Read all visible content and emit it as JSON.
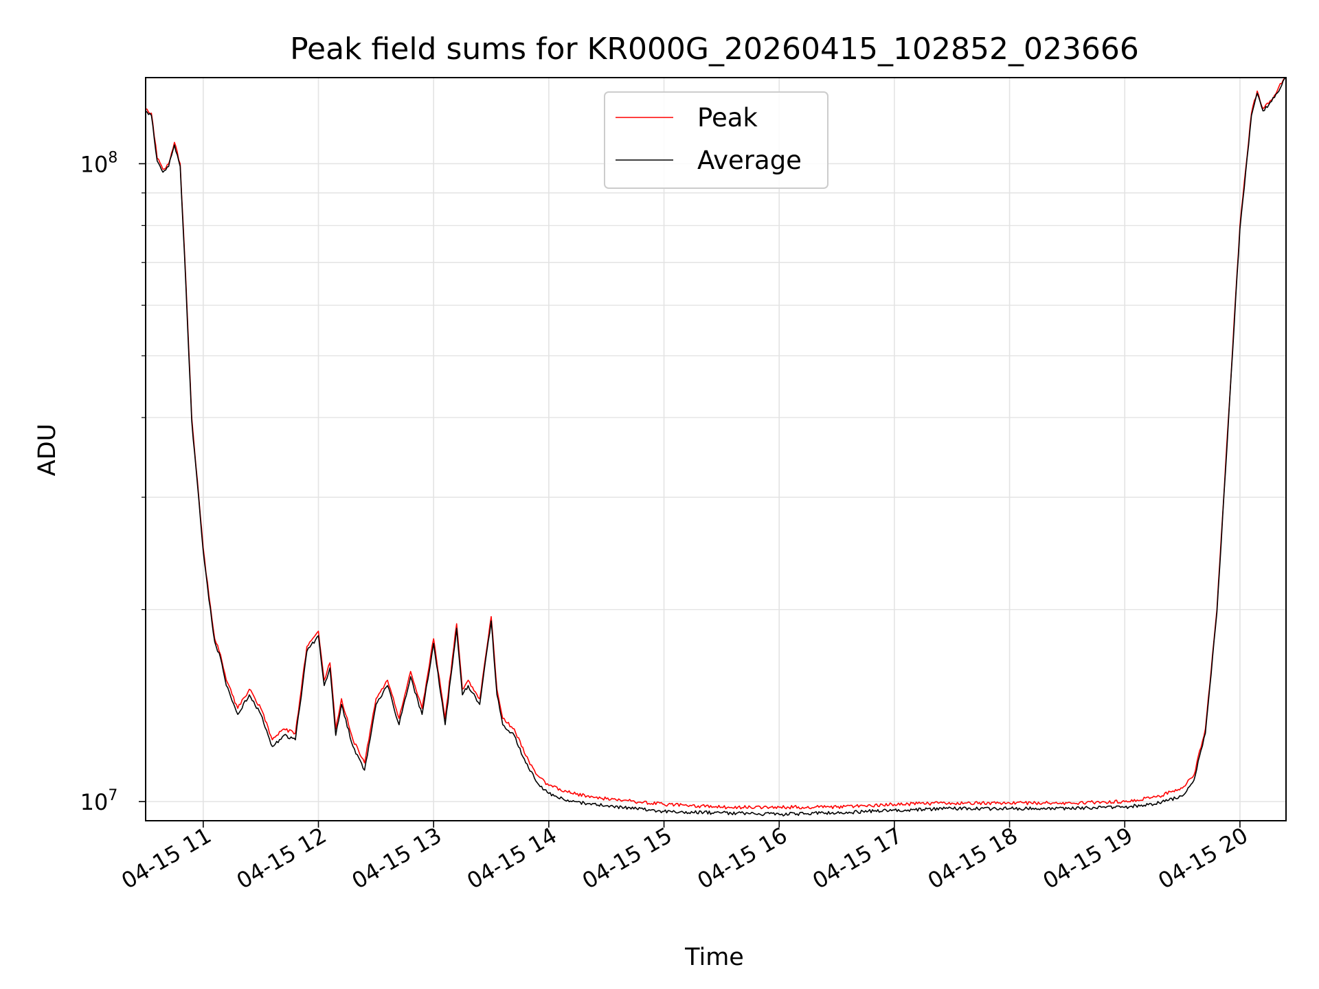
{
  "chart_data": {
    "type": "line",
    "title": "Peak field sums for KR000G_20260415_102852_023666",
    "xlabel": "Time",
    "ylabel": "ADU",
    "xlim": [
      10.5,
      20.4
    ],
    "ylim_log10": [
      6.97,
      8.135
    ],
    "y_scale": "log",
    "x_ticks": [
      {
        "value": 11,
        "label": "04-15 11"
      },
      {
        "value": 12,
        "label": "04-15 12"
      },
      {
        "value": 13,
        "label": "04-15 13"
      },
      {
        "value": 14,
        "label": "04-15 14"
      },
      {
        "value": 15,
        "label": "04-15 15"
      },
      {
        "value": 16,
        "label": "04-15 16"
      },
      {
        "value": 17,
        "label": "04-15 17"
      },
      {
        "value": 18,
        "label": "04-15 18"
      },
      {
        "value": 19,
        "label": "04-15 19"
      },
      {
        "value": 20,
        "label": "04-15 20"
      }
    ],
    "y_major_ticks": [
      {
        "exp": 7,
        "base": "10",
        "sup": "7"
      },
      {
        "exp": 8,
        "base": "10",
        "sup": "8"
      }
    ],
    "y_minor_ticks": [
      20000000,
      30000000,
      40000000,
      50000000,
      60000000,
      70000000,
      80000000,
      90000000,
      200000000
    ],
    "grid": true,
    "legend": "top-center",
    "series": [
      {
        "name": "Peak",
        "color": "#ff0000",
        "x": [
          10.5,
          10.55,
          10.6,
          10.65,
          10.7,
          10.75,
          10.8,
          10.85,
          10.9,
          11.0,
          11.05,
          11.1,
          11.15,
          11.2,
          11.3,
          11.4,
          11.5,
          11.6,
          11.7,
          11.8,
          11.9,
          12.0,
          12.05,
          12.1,
          12.15,
          12.2,
          12.3,
          12.4,
          12.5,
          12.6,
          12.7,
          12.8,
          12.9,
          13.0,
          13.1,
          13.2,
          13.25,
          13.3,
          13.4,
          13.5,
          13.55,
          13.6,
          13.7,
          13.8,
          13.9,
          14.0,
          14.2,
          14.5,
          15.0,
          15.5,
          16.0,
          16.5,
          17.0,
          17.5,
          18.0,
          18.5,
          19.0,
          19.3,
          19.5,
          19.6,
          19.7,
          19.8,
          19.9,
          20.0,
          20.1,
          20.15,
          20.2,
          20.3,
          20.4
        ],
        "y": [
          122000000,
          120000000,
          102000000,
          98000000,
          100000000,
          108000000,
          100000000,
          65000000,
          40000000,
          25000000,
          21000000,
          18000000,
          17000000,
          15500000,
          14000000,
          15000000,
          14000000,
          12500000,
          13000000,
          12800000,
          17500000,
          18500000,
          15500000,
          16500000,
          13000000,
          14500000,
          12500000,
          11500000,
          14500000,
          15500000,
          13500000,
          16000000,
          14000000,
          18000000,
          13500000,
          19000000,
          15000000,
          15500000,
          14500000,
          19500000,
          15000000,
          13500000,
          13000000,
          11800000,
          11000000,
          10600000,
          10300000,
          10100000,
          9900000,
          9800000,
          9800000,
          9800000,
          9900000,
          9950000,
          9950000,
          9950000,
          10000000,
          10200000,
          10500000,
          11000000,
          13000000,
          20000000,
          40000000,
          80000000,
          120000000,
          130000000,
          122000000,
          128000000,
          138000000
        ]
      },
      {
        "name": "Average",
        "color": "#000000",
        "x": [
          10.5,
          10.55,
          10.6,
          10.65,
          10.7,
          10.75,
          10.8,
          10.85,
          10.9,
          11.0,
          11.05,
          11.1,
          11.15,
          11.2,
          11.3,
          11.4,
          11.5,
          11.6,
          11.7,
          11.8,
          11.9,
          12.0,
          12.05,
          12.1,
          12.15,
          12.2,
          12.3,
          12.4,
          12.5,
          12.6,
          12.7,
          12.8,
          12.9,
          13.0,
          13.1,
          13.2,
          13.25,
          13.3,
          13.4,
          13.5,
          13.55,
          13.6,
          13.7,
          13.8,
          13.9,
          14.0,
          14.2,
          14.5,
          15.0,
          15.5,
          16.0,
          16.5,
          17.0,
          17.5,
          18.0,
          18.5,
          19.0,
          19.3,
          19.5,
          19.6,
          19.7,
          19.8,
          19.9,
          20.0,
          20.1,
          20.15,
          20.2,
          20.3,
          20.4
        ],
        "y": [
          121000000,
          119000000,
          101000000,
          97000000,
          99000000,
          107000000,
          99000000,
          64000000,
          39500000,
          24700000,
          20700000,
          17800000,
          16800000,
          15200000,
          13700000,
          14700000,
          13700000,
          12200000,
          12700000,
          12500000,
          17200000,
          18200000,
          15200000,
          16200000,
          12700000,
          14200000,
          12200000,
          11200000,
          14200000,
          15200000,
          13200000,
          15700000,
          13700000,
          17700000,
          13200000,
          18700000,
          14700000,
          15200000,
          14200000,
          19200000,
          14700000,
          13200000,
          12700000,
          11500000,
          10700000,
          10300000,
          10000000,
          9850000,
          9650000,
          9600000,
          9550000,
          9600000,
          9700000,
          9750000,
          9750000,
          9750000,
          9800000,
          9950000,
          10200000,
          10800000,
          12800000,
          19800000,
          39500000,
          79000000,
          119000000,
          129000000,
          121000000,
          127000000,
          137000000
        ]
      }
    ]
  }
}
